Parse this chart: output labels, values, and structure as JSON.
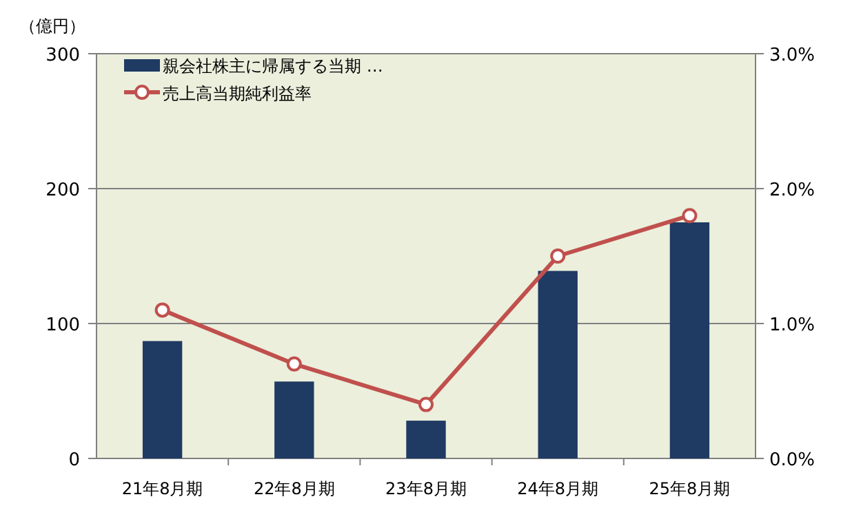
{
  "chart_data": {
    "type": "bar",
    "ylabel": "（億円）",
    "categories": [
      "21年8月期",
      "22年8月期",
      "23年8月期",
      "24年8月期",
      "25年8月期"
    ],
    "series": [
      {
        "name": "親会社株主に帰属する当期 …",
        "color": "#1f3a63",
        "values": [
          87,
          57,
          28,
          139,
          175
        ]
      },
      {
        "name": "売上高当期純利益率",
        "type": "line",
        "axis": "y2",
        "color": "#c0504d",
        "marker": "circle",
        "values": [
          1.1,
          0.7,
          0.4,
          1.5,
          1.8
        ]
      }
    ],
    "ylim": [
      0,
      300
    ],
    "yticks": [
      0,
      100,
      200,
      300
    ],
    "y2lim": [
      0,
      3
    ],
    "y2ticks": [
      {
        "value": 0,
        "label": "0.0%"
      },
      {
        "value": 1,
        "label": "1.0%"
      },
      {
        "value": 2,
        "label": "2.0%"
      },
      {
        "value": 3,
        "label": "3.0%"
      }
    ],
    "grid": "y",
    "legend": "top left"
  }
}
